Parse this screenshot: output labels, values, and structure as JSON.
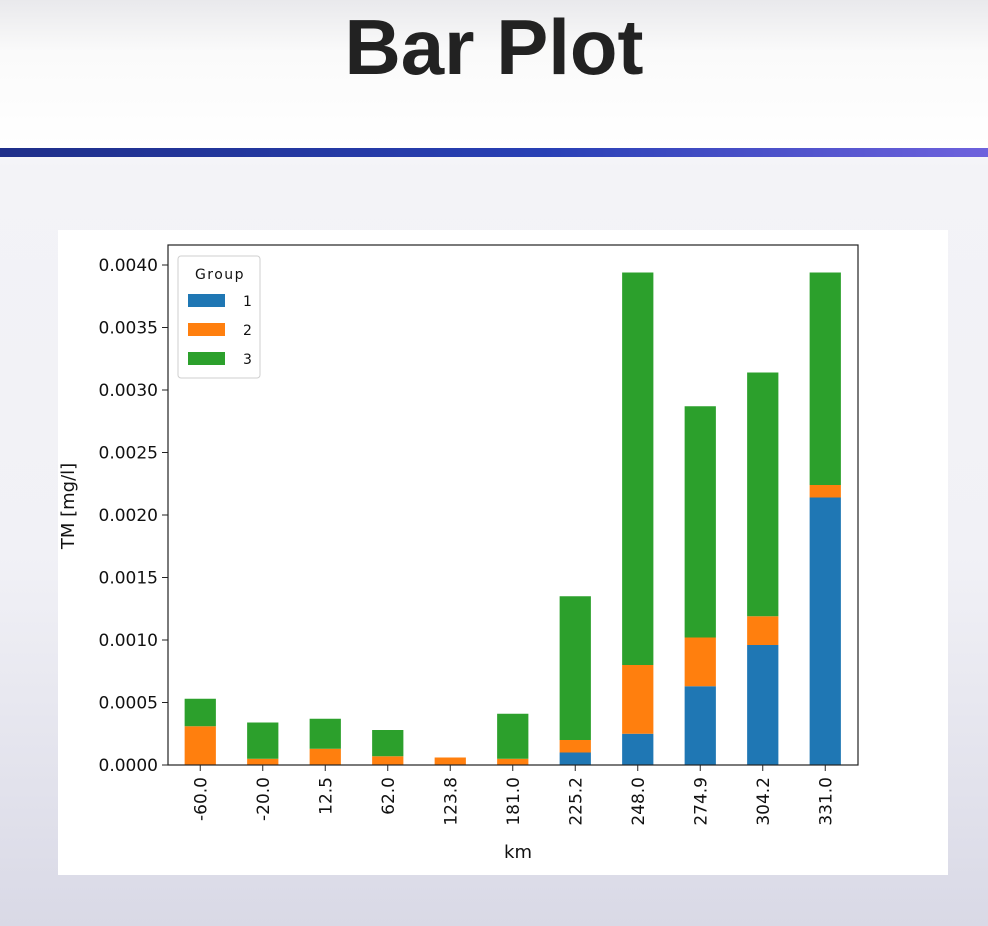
{
  "slide": {
    "title": "Bar Plot"
  },
  "chart_data": {
    "type": "bar",
    "stacked": true,
    "categories": [
      "-60.0",
      "-20.0",
      "12.5",
      "62.0",
      "123.8",
      "181.0",
      "225.2",
      "248.0",
      "274.9",
      "304.2",
      "331.0"
    ],
    "series": [
      {
        "name": "1",
        "color": "#1f77b4",
        "values": [
          0,
          0,
          0,
          0,
          0,
          0,
          0.0001,
          0.00025,
          0.00063,
          0.00096,
          0.00214
        ]
      },
      {
        "name": "2",
        "color": "#ff7f0e",
        "values": [
          0.00031,
          5e-05,
          0.00013,
          7e-05,
          6e-05,
          5e-05,
          0.0001,
          0.00055,
          0.00039,
          0.00023,
          0.0001
        ]
      },
      {
        "name": "3",
        "color": "#2ca02c",
        "values": [
          0.00022,
          0.00029,
          0.00024,
          0.00021,
          0,
          0.00036,
          0.00115,
          0.00314,
          0.00185,
          0.00195,
          0.0017
        ]
      }
    ],
    "xlabel": "km",
    "ylabel": "TM [mg/l]",
    "ylim": [
      0,
      0.004
    ],
    "yticks": [
      "0.0000",
      "0.0005",
      "0.0010",
      "0.0015",
      "0.0020",
      "0.0025",
      "0.0030",
      "0.0035",
      "0.0040"
    ],
    "legend": {
      "title": "Group",
      "position": "top-left"
    },
    "grid": false
  }
}
